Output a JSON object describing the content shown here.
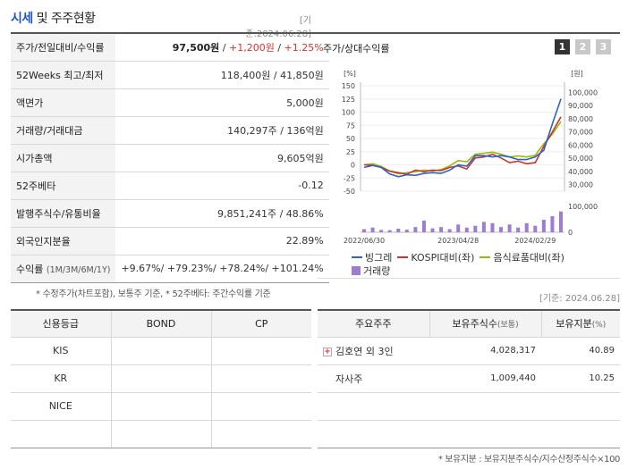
{
  "header": {
    "title_highlight": "시세",
    "title_rest": " 및 주주현황",
    "as_of": "[기준:2024.06.28]"
  },
  "price_table": {
    "rows": [
      {
        "label": "주가/전일대비/수익률",
        "price": "97,500원",
        "sep1": " / ",
        "change": "+1,200원",
        "sep2": " / ",
        "rate": "+1.25%"
      },
      {
        "label": "52Weeks 최고/최저",
        "value": "118,400원 / 41,850원"
      },
      {
        "label": "액면가",
        "value": "5,000원"
      },
      {
        "label": "거래량/거래대금",
        "value": "140,297주 / 136억원"
      },
      {
        "label": "시가총액",
        "value": "9,605억원"
      },
      {
        "label": "52주베타",
        "value": "-0.12"
      },
      {
        "label": "발행주식수/유통비율",
        "value": "9,851,241주 / 48.86%"
      },
      {
        "label": "외국인지분율",
        "value": "22.89%"
      }
    ],
    "returns": {
      "label": "수익률",
      "periods": "(1M/3M/6M/1Y)",
      "values": "+9.67%/ +79.23%/ +78.24%/ +101.24%"
    }
  },
  "footnote1": "* 수정주가(차트포함), 보통주 기준, * 52주베타: 주간수익률 기준",
  "chart_panel": {
    "title": "주가/상대수익률",
    "tabs": [
      "1",
      "2",
      "3"
    ]
  },
  "chart_data": {
    "type": "line",
    "left_unit": "[%]",
    "right_unit": "[원]",
    "left_ticks": [
      "150",
      "125",
      "100",
      "75",
      "50",
      "25",
      "0",
      "-25",
      "-50"
    ],
    "right_ticks": [
      "100,000",
      "90,000",
      "80,000",
      "70,000",
      "60,000",
      "50,000",
      "40,000",
      "30,000"
    ],
    "volume_ticks": [
      "100,000",
      "0"
    ],
    "ylim_left": [
      -50,
      150
    ],
    "ylim_right": [
      25000,
      105000
    ],
    "x_labels": [
      "2022/06/30",
      "2023/04/28",
      "2024/02/29"
    ],
    "legend_items": [
      "빙그레",
      "KOSPI대비(좌)",
      "음식료품대비(좌)",
      "거래량"
    ],
    "colors": {
      "stock": "#2c62c9",
      "kospi": "#c8362d",
      "food": "#9cb80d",
      "volume": "#9d7cd1"
    },
    "series": [
      {
        "name": "빙그레",
        "axis": "right",
        "values": [
          43000,
          44500,
          43000,
          38000,
          36000,
          37500,
          37000,
          38500,
          39000,
          38500,
          41000,
          45000,
          44000,
          52000,
          52000,
          51000,
          52000,
          51000,
          49000,
          49000,
          51000,
          56000,
          76000,
          95000
        ]
      },
      {
        "name": "KOSPI대비(좌)",
        "axis": "left",
        "values": [
          0,
          -1,
          -5,
          -12,
          -15,
          -18,
          -10,
          -13,
          -10,
          -11,
          -5,
          -2,
          -8,
          13,
          15,
          20,
          13,
          4,
          7,
          2,
          4,
          35,
          62,
          91
        ]
      },
      {
        "name": "음식료품대비(좌)",
        "axis": "left",
        "values": [
          0,
          2,
          -3,
          -12,
          -17,
          -15,
          -13,
          -10,
          -12,
          -9,
          -2,
          8,
          6,
          20,
          22,
          24,
          20,
          15,
          17,
          15,
          18,
          40,
          58,
          82
        ]
      },
      {
        "name": "거래량",
        "axis": "volume",
        "values": [
          12000,
          18000,
          9000,
          8000,
          14000,
          10000,
          20000,
          45000,
          15000,
          20000,
          12000,
          30000,
          18000,
          25000,
          40000,
          35000,
          20000,
          30000,
          18000,
          35000,
          25000,
          48000,
          62000,
          80000
        ]
      }
    ],
    "volume_max": 110000
  },
  "as_of_mid": "[기준: 2024.06.28]",
  "credit_table": {
    "headers": [
      "신용등급",
      "BOND",
      "CP"
    ],
    "rows": [
      {
        "agency": "KIS",
        "bond": "",
        "cp": ""
      },
      {
        "agency": "KR",
        "bond": "",
        "cp": ""
      },
      {
        "agency": "NICE",
        "bond": "",
        "cp": ""
      },
      {
        "agency": "",
        "bond": "",
        "cp": ""
      }
    ]
  },
  "holders_table": {
    "headers": [
      "주요주주",
      "보유주식수",
      "(보통)",
      "보유지분",
      "(%)"
    ],
    "rows": [
      {
        "name": "김호연 외 3인",
        "shares": "4,028,317",
        "pct": "40.89",
        "expandable": true
      },
      {
        "name": "자사주",
        "shares": "1,009,440",
        "pct": "10.25",
        "expandable": false
      },
      {
        "name": "",
        "shares": "",
        "pct": ""
      },
      {
        "name": "",
        "shares": "",
        "pct": ""
      }
    ]
  },
  "footnote2": "* 보유지분 : 보유지분주식수/지수산정주식수×100"
}
